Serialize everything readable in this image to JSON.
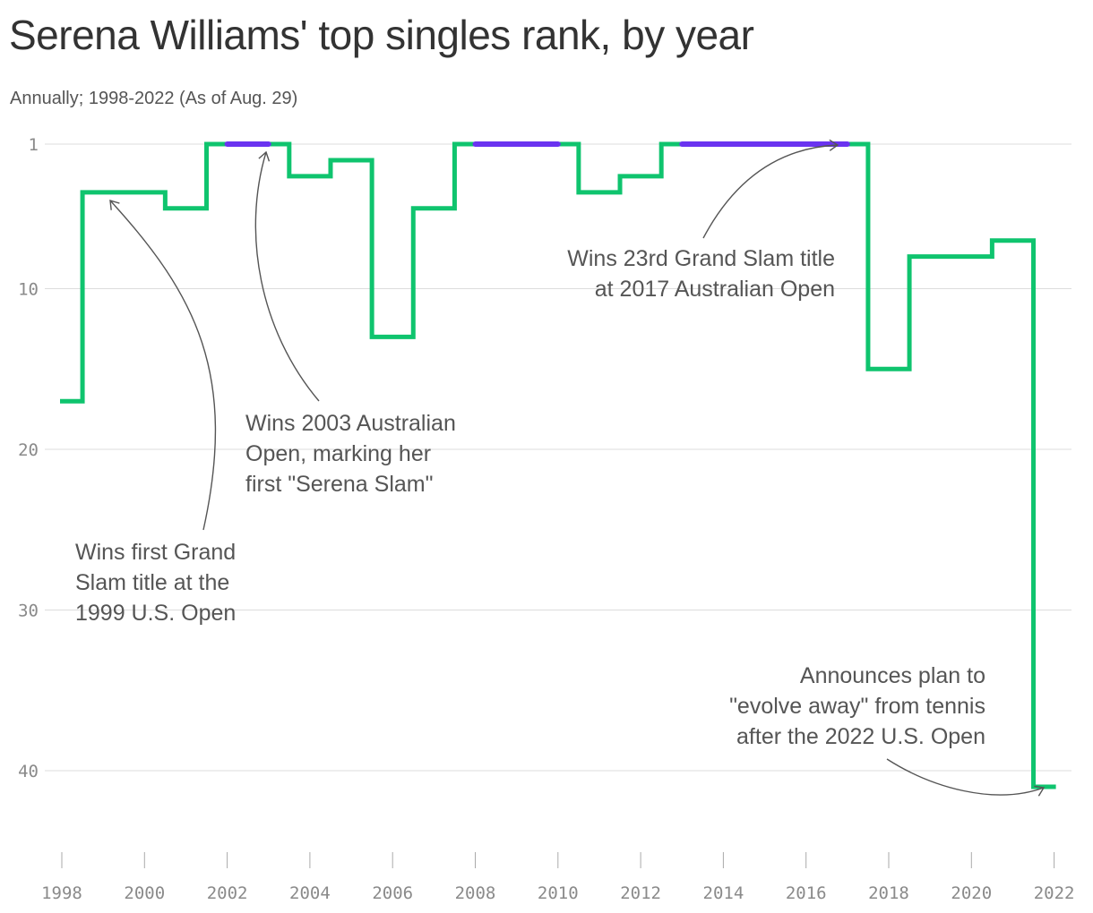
{
  "chart_data": {
    "type": "line",
    "step": true,
    "title": "Serena Williams' top singles rank, by year",
    "subtitle": "Annually; 1998-2022 (As of Aug. 29)",
    "y_axis": {
      "ticks": [
        1,
        10,
        20,
        30,
        40
      ],
      "inverted": true,
      "range": [
        1,
        45
      ]
    },
    "x_axis": {
      "ticks": [
        1998,
        2000,
        2002,
        2004,
        2006,
        2008,
        2010,
        2012,
        2014,
        2016,
        2018,
        2020,
        2022
      ],
      "range": [
        1998,
        2022
      ]
    },
    "grid": "horizontal",
    "series": [
      {
        "color": "#0fc46e",
        "points": [
          {
            "year": 1998,
            "rank": 17
          },
          {
            "year": 1999,
            "rank": 4
          },
          {
            "year": 2000,
            "rank": 4
          },
          {
            "year": 2001,
            "rank": 5
          },
          {
            "year": 2002,
            "rank": 1
          },
          {
            "year": 2003,
            "rank": 1
          },
          {
            "year": 2004,
            "rank": 3
          },
          {
            "year": 2005,
            "rank": 2
          },
          {
            "year": 2006,
            "rank": 13
          },
          {
            "year": 2007,
            "rank": 5
          },
          {
            "year": 2008,
            "rank": 1
          },
          {
            "year": 2009,
            "rank": 1
          },
          {
            "year": 2010,
            "rank": 1
          },
          {
            "year": 2011,
            "rank": 4
          },
          {
            "year": 2012,
            "rank": 3
          },
          {
            "year": 2013,
            "rank": 1
          },
          {
            "year": 2014,
            "rank": 1
          },
          {
            "year": 2015,
            "rank": 1
          },
          {
            "year": 2016,
            "rank": 1
          },
          {
            "year": 2017,
            "rank": 1
          },
          {
            "year": 2018,
            "rank": 15
          },
          {
            "year": 2019,
            "rank": 8
          },
          {
            "year": 2020,
            "rank": 8
          },
          {
            "year": 2021,
            "rank": 7
          },
          {
            "year": 2022,
            "rank": 41
          }
        ]
      }
    ],
    "highlights": {
      "color": "#6a33f0",
      "spans": [
        [
          2002,
          2003
        ],
        [
          2008,
          2010
        ],
        [
          2013,
          2017
        ]
      ]
    },
    "annotations": [
      {
        "lines": [
          "Wins first Grand",
          "Slam title at the",
          "1999 U.S. Open"
        ]
      },
      {
        "lines": [
          "Wins 2003 Australian",
          "Open, marking her",
          "first \"Serena Slam\""
        ]
      },
      {
        "lines": [
          "Wins 23rd Grand Slam title",
          "at 2017 Australian Open"
        ]
      },
      {
        "lines": [
          "Announces plan to",
          "\"evolve away\" from tennis",
          "after the 2022 U.S. Open"
        ]
      }
    ]
  }
}
